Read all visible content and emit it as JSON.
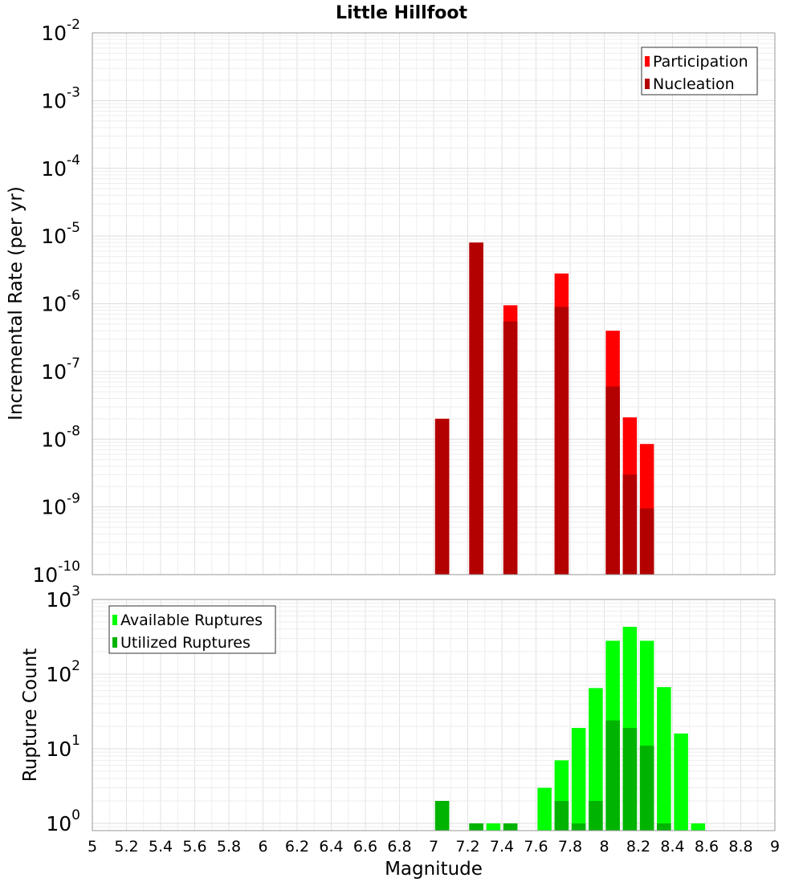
{
  "chart_data": [
    {
      "type": "bar",
      "title": "Little Hillfoot",
      "xlabel": "",
      "ylabel": "Incremental Rate (per yr)",
      "yscale": "log",
      "ylim": [
        1e-10,
        0.01
      ],
      "xlim": [
        5,
        9
      ],
      "grid": true,
      "legend_position": "top-right",
      "colors": {
        "Participation": "#ff0000",
        "Nucleation": "#b30000"
      },
      "x": [
        7.05,
        7.25,
        7.45,
        7.75,
        8.05,
        8.15,
        8.25
      ],
      "series": [
        {
          "name": "Participation",
          "values": [
            2e-08,
            8e-06,
            9.5e-07,
            2.8e-06,
            4e-07,
            2.1e-08,
            8.5e-09
          ]
        },
        {
          "name": "Nucleation",
          "values": [
            2e-08,
            8e-06,
            5.5e-07,
            9e-07,
            6e-08,
            3e-09,
            9.5e-10
          ]
        }
      ]
    },
    {
      "type": "bar",
      "xlabel": "Magnitude",
      "ylabel": "Rupture Count",
      "yscale": "log",
      "ylim": [
        0.8,
        1000
      ],
      "xlim": [
        5,
        9
      ],
      "grid": true,
      "legend_position": "top-left",
      "colors": {
        "Available Ruptures": "#00ff00",
        "Utilized Ruptures": "#00b300"
      },
      "x": [
        7.05,
        7.25,
        7.35,
        7.45,
        7.65,
        7.75,
        7.85,
        7.95,
        8.05,
        8.15,
        8.25,
        8.35,
        8.45,
        8.55
      ],
      "series": [
        {
          "name": "Available Ruptures",
          "values": [
            2,
            1,
            1,
            1,
            3,
            7,
            19,
            65,
            280,
            430,
            280,
            67,
            16,
            1
          ]
        },
        {
          "name": "Utilized Ruptures",
          "values": [
            2,
            1,
            0,
            1,
            0,
            2,
            1,
            2,
            24,
            19,
            11,
            1,
            0,
            0
          ]
        }
      ]
    }
  ],
  "xticks": [
    "5",
    "5.2",
    "5.4",
    "5.6",
    "5.8",
    "6",
    "6.2",
    "6.4",
    "6.6",
    "6.8",
    "7",
    "7.2",
    "7.4",
    "7.6",
    "7.8",
    "8",
    "8.2",
    "8.4",
    "8.6",
    "8.8",
    "9"
  ],
  "top_yticks": [
    {
      "base": "10",
      "exp": "-10"
    },
    {
      "base": "10",
      "exp": "-9"
    },
    {
      "base": "10",
      "exp": "-8"
    },
    {
      "base": "10",
      "exp": "-7"
    },
    {
      "base": "10",
      "exp": "-6"
    },
    {
      "base": "10",
      "exp": "-5"
    },
    {
      "base": "10",
      "exp": "-4"
    },
    {
      "base": "10",
      "exp": "-3"
    },
    {
      "base": "10",
      "exp": "-2"
    }
  ],
  "bottom_yticks": [
    {
      "base": "10",
      "exp": "0"
    },
    {
      "base": "10",
      "exp": "1"
    },
    {
      "base": "10",
      "exp": "2"
    },
    {
      "base": "10",
      "exp": "3"
    }
  ]
}
